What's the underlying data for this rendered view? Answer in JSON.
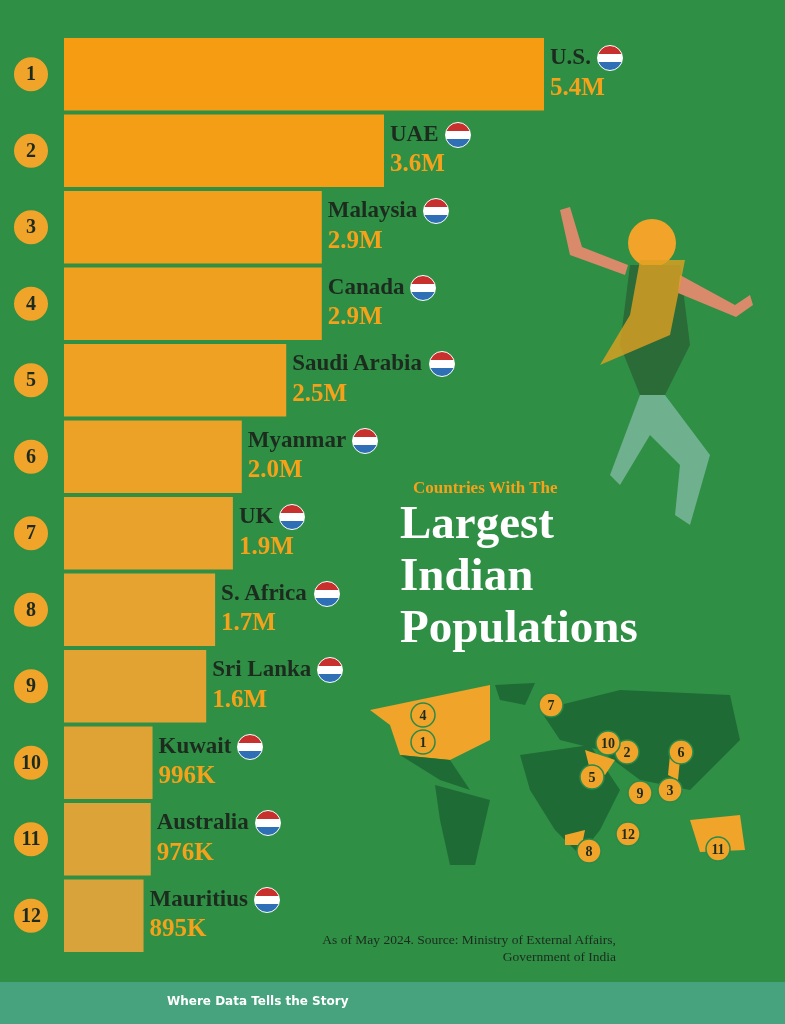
{
  "chart_data": {
    "type": "bar",
    "orientation": "horizontal",
    "subtitle": "Countries With The",
    "title": "Largest Indian Populations",
    "categories": [
      "U.S.",
      "UAE",
      "Malaysia",
      "Canada",
      "Saudi Arabia",
      "Myanmar",
      "UK",
      "S. Africa",
      "Sri Lanka",
      "Kuwait",
      "Australia",
      "Mauritius"
    ],
    "values": [
      5400000,
      3600000,
      2900000,
      2900000,
      2500000,
      2000000,
      1900000,
      1700000,
      1600000,
      996000,
      976000,
      895000
    ],
    "value_labels": [
      "5.4M",
      "3.6M",
      "2.9M",
      "2.9M",
      "2.5M",
      "2.0M",
      "1.9M",
      "1.7M",
      "1.6M",
      "996K",
      "976K",
      "895K"
    ],
    "colors": [
      "#f59c12",
      "#f49e16",
      "#f2a01b",
      "#f0a01f",
      "#eea123",
      "#eca227",
      "#e9a22b",
      "#e6a32f",
      "#e3a332",
      "#dfa335",
      "#dba338",
      "#d7a33a"
    ],
    "annotations": [
      "1",
      "2",
      "3",
      "4",
      "5",
      "6",
      "7",
      "8",
      "9",
      "10",
      "11",
      "12",
      "As of May 2024. Source: Ministry of External Affairs, Government of India",
      "Where Data Tells the Story"
    ]
  }
}
